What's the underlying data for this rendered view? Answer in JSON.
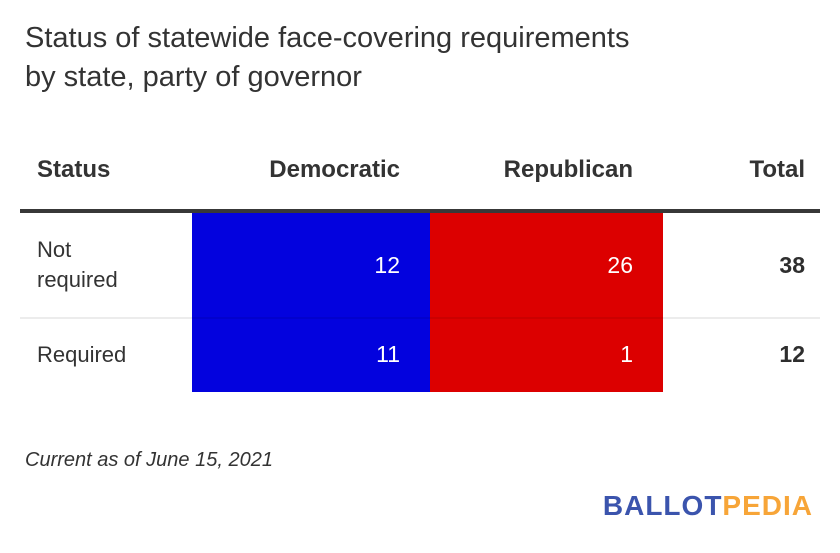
{
  "header": {
    "title_lines": [
      "Status of statewide face-covering requirements",
      "by state, party of governor"
    ]
  },
  "table": {
    "columns": [
      "Status",
      "Democratic",
      "Republican",
      "Total"
    ],
    "rows": [
      {
        "label": "Not required",
        "dem": "12",
        "rep": "26",
        "total": "38"
      },
      {
        "label": "Required",
        "dem": "11",
        "rep": "1",
        "total": "12"
      }
    ]
  },
  "footer": {
    "note": "Current as of June 15, 2021",
    "logo": {
      "part1": "BALLOT",
      "part2": "PEDIA"
    }
  },
  "colors": {
    "democratic_bar": "#0302de",
    "republican_bar": "#dc0000",
    "logo_blue": "#3b54ad",
    "logo_orange": "#f7a538",
    "text": "#333333",
    "header_rule": "#383838",
    "row_separator": "#ececec"
  },
  "chart_data": {
    "type": "table",
    "title": "Status of statewide face-covering requirements by state, party of governor",
    "columns": [
      "Status",
      "Democratic",
      "Republican",
      "Total"
    ],
    "rows": [
      {
        "status": "Not required",
        "democratic": 12,
        "republican": 26,
        "total": 38
      },
      {
        "status": "Required",
        "democratic": 11,
        "republican": 1,
        "total": 12
      }
    ],
    "cell_colors": {
      "democratic": "#0302de",
      "republican": "#dc0000"
    },
    "legend_position": "none",
    "grid": false,
    "note": "Current as of June 15, 2021",
    "source": "BALLOTPEDIA"
  }
}
